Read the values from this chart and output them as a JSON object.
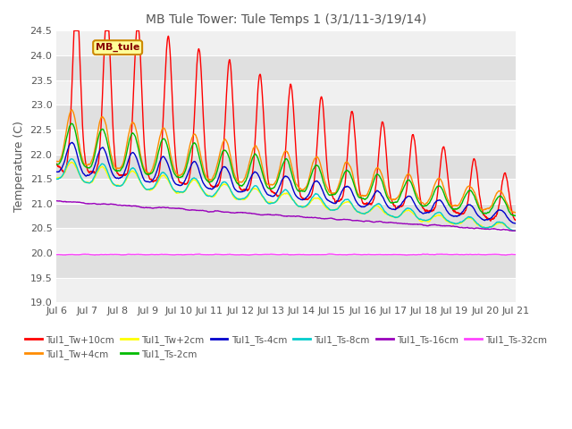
{
  "title": "MB Tule Tower: Tule Temps 1 (3/1/11-3/19/14)",
  "ylabel": "Temperature (C)",
  "ylim": [
    19.0,
    24.5
  ],
  "xlim": [
    0,
    15
  ],
  "xtick_labels": [
    "Jul 6",
    "Jul 7",
    "Jul 8",
    "Jul 9",
    "Jul 10",
    "Jul 11",
    "Jul 12",
    "Jul 13",
    "Jul 14",
    "Jul 15",
    "Jul 16",
    "Jul 17",
    "Jul 18",
    "Jul 19",
    "Jul 20",
    "Jul 21"
  ],
  "ytick_vals": [
    19.0,
    19.5,
    20.0,
    20.5,
    21.0,
    21.5,
    22.0,
    22.5,
    23.0,
    23.5,
    24.0,
    24.5
  ],
  "legend_label": "MB_tule",
  "series_order": [
    "Tul1_Tw+10cm",
    "Tul1_Tw+4cm",
    "Tul1_Tw+2cm",
    "Tul1_Ts-2cm",
    "Tul1_Ts-4cm",
    "Tul1_Ts-8cm",
    "Tul1_Ts-16cm",
    "Tul1_Ts-32cm"
  ],
  "series": {
    "Tul1_Tw+10cm": {
      "color": "#ff0000",
      "lw": 1.0
    },
    "Tul1_Tw+4cm": {
      "color": "#ff8c00",
      "lw": 1.0
    },
    "Tul1_Tw+2cm": {
      "color": "#ffff00",
      "lw": 1.0
    },
    "Tul1_Ts-2cm": {
      "color": "#00bb00",
      "lw": 1.0
    },
    "Tul1_Ts-4cm": {
      "color": "#0000cc",
      "lw": 1.0
    },
    "Tul1_Ts-8cm": {
      "color": "#00cccc",
      "lw": 1.0
    },
    "Tul1_Ts-16cm": {
      "color": "#9900bb",
      "lw": 1.0
    },
    "Tul1_Ts-32cm": {
      "color": "#ff44ff",
      "lw": 1.0
    }
  },
  "background_color": "#ffffff",
  "band_colors": [
    "#f0f0f0",
    "#e0e0e0"
  ],
  "title_color": "#555555",
  "label_color": "#555555",
  "tick_fontsize": 8,
  "title_fontsize": 10,
  "ylabel_fontsize": 9,
  "legend_fontsize": 7.5
}
